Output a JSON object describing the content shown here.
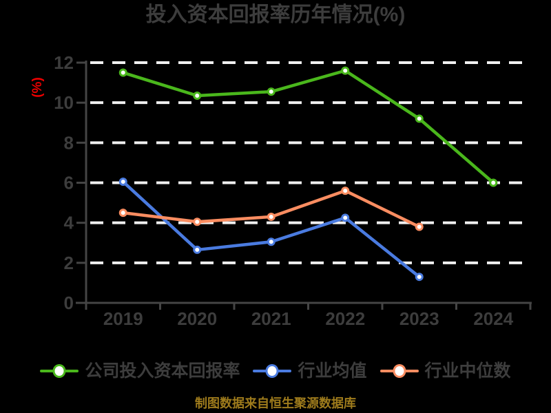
{
  "title": "投入资本回报率历年情况(%)",
  "y_axis_label": "(%)",
  "footer": "制图数据来自恒生聚源数据库",
  "colors": {
    "background": "#000000",
    "title": "#3d3d3d",
    "axis": "#454545",
    "grid": "#f0f0f0",
    "tick_label": "#3d3d3d",
    "y_axis_label": "#ee0000",
    "legend_label": "#3d3d3d",
    "footer": "#9e7b1c"
  },
  "chart_data": {
    "type": "line",
    "title": "投入资本回报率历年情况(%)",
    "categories": [
      "2019",
      "2020",
      "2021",
      "2022",
      "2023",
      "2024"
    ],
    "series": [
      {
        "name": "公司投入资本回报率",
        "color": "#4ab71c",
        "values": [
          11.5,
          10.35,
          10.55,
          11.6,
          9.2,
          6.0
        ]
      },
      {
        "name": "行业均值",
        "color": "#4a7be0",
        "values": [
          6.05,
          2.65,
          3.05,
          4.25,
          1.3,
          null
        ]
      },
      {
        "name": "行业中位数",
        "color": "#fa8d61",
        "values": [
          4.5,
          4.05,
          4.3,
          5.6,
          3.8,
          null
        ]
      }
    ],
    "ylim": [
      0,
      12
    ],
    "y_ticks": [
      0,
      2,
      4,
      6,
      8,
      10,
      12
    ],
    "ylabel": "(%)",
    "grid": "horizontal-dashed-white",
    "legend_position": "bottom",
    "marker": "white-filled-circle",
    "source_note": "制图数据来自恒生聚源数据库"
  }
}
